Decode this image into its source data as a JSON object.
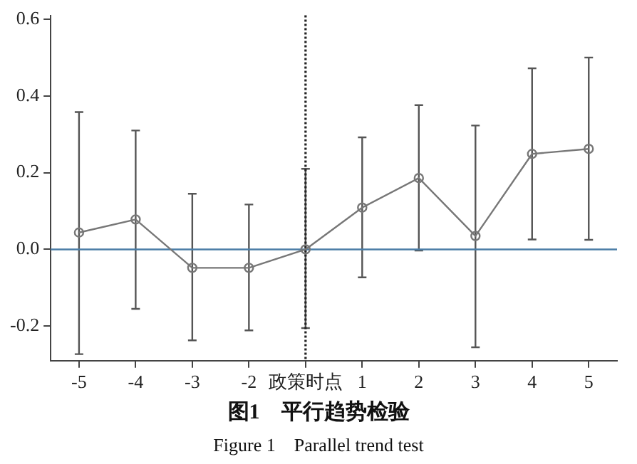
{
  "chart_data": {
    "type": "line",
    "title": "图1　平行趋势检验",
    "subtitle": "Figure 1　Parallel trend test",
    "categories": [
      "-5",
      "-4",
      "-3",
      "-2",
      "政策时点",
      "1",
      "2",
      "3",
      "4",
      "5"
    ],
    "series": [
      {
        "color": "#777777",
        "values": [
          0.044,
          0.078,
          -0.048,
          -0.048,
          0.0,
          0.109,
          0.186,
          0.035,
          0.249,
          0.262
        ],
        "errors": [
          [
            -0.273,
            0.358
          ],
          [
            -0.155,
            0.31
          ],
          [
            -0.237,
            0.145
          ],
          [
            -0.211,
            0.117
          ],
          [
            -0.205,
            0.21
          ],
          [
            -0.073,
            0.292
          ],
          [
            -0.003,
            0.376
          ],
          [
            -0.255,
            0.323
          ],
          [
            0.026,
            0.472
          ],
          [
            0.025,
            0.5
          ]
        ]
      }
    ],
    "ylim": [
      -0.29,
      0.61
    ],
    "yticks": [
      {
        "value": -0.2,
        "label": "-0.2"
      },
      {
        "value": 0,
        "label": "0.0"
      },
      {
        "value": 0.2,
        "label": "0.2"
      },
      {
        "value": 0.4,
        "label": "0.4"
      },
      {
        "value": 0.6,
        "label": "0.6"
      }
    ],
    "ref_lines": [
      {
        "axis": "x",
        "value": "政策时点",
        "color": "#222222",
        "line_style": "dotted"
      },
      {
        "axis": "y",
        "value": 0,
        "color": "#4a7ca6",
        "line_style": "solid"
      }
    ],
    "marker": "circle",
    "line_style": "solid",
    "grid": false,
    "legend": false
  }
}
